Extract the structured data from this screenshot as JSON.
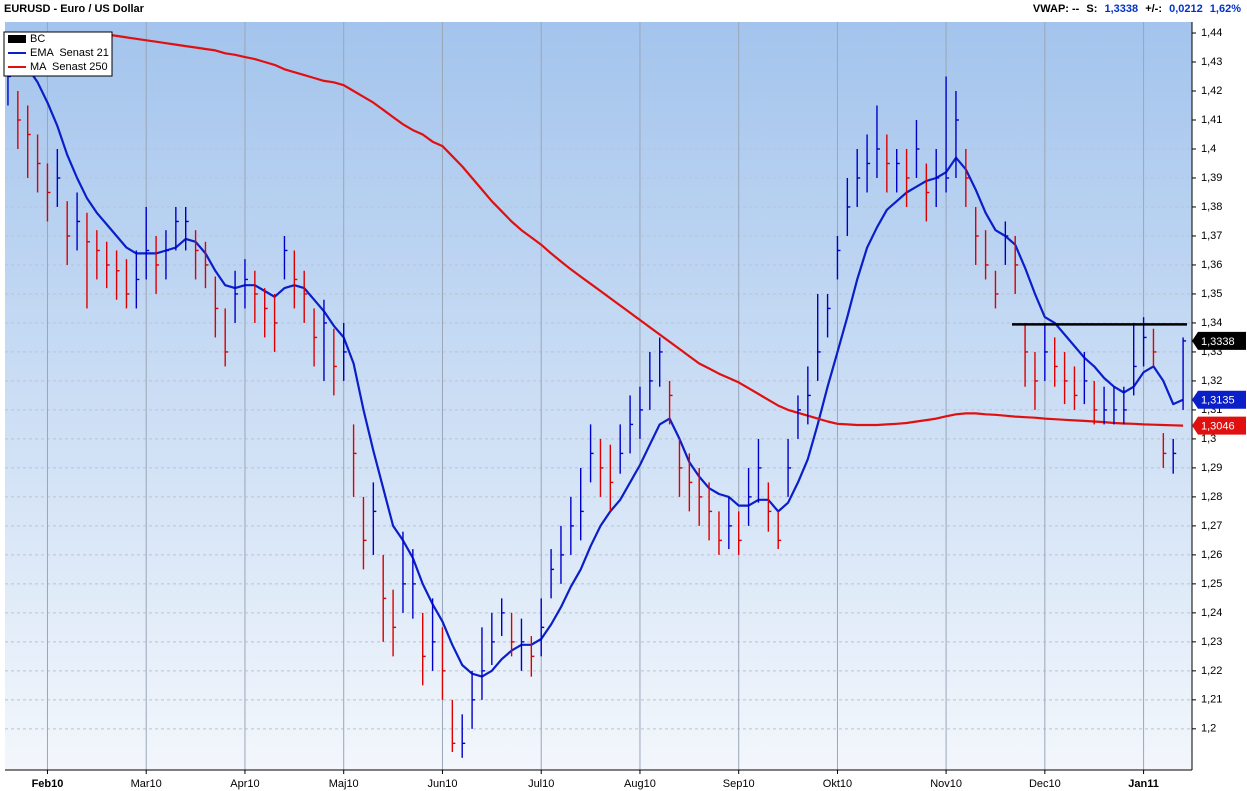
{
  "chart_data": {
    "type": "ohlc",
    "title": "EURUSD - Euro / US Dollar",
    "stats": [
      "VWAP: --",
      "S:",
      "1,3338",
      "+/-:",
      "0,0212",
      "1,62%"
    ],
    "categories": [
      null,
      null,
      null,
      null,
      "Feb10",
      null,
      null,
      null,
      null,
      null,
      null,
      null,
      null,
      null,
      "Mar10",
      null,
      null,
      null,
      null,
      null,
      null,
      null,
      null,
      null,
      "Apr10",
      null,
      null,
      null,
      null,
      null,
      null,
      null,
      null,
      null,
      "Maj10",
      null,
      null,
      null,
      null,
      null,
      null,
      null,
      null,
      null,
      "Jun10",
      null,
      null,
      null,
      null,
      null,
      null,
      null,
      null,
      null,
      "Jul10",
      null,
      null,
      null,
      null,
      null,
      null,
      null,
      null,
      null,
      "Aug10",
      null,
      null,
      null,
      null,
      null,
      null,
      null,
      null,
      null,
      "Sep10",
      null,
      null,
      null,
      null,
      null,
      null,
      null,
      null,
      null,
      "Okt10",
      null,
      null,
      null,
      null,
      null,
      null,
      null,
      null,
      null,
      null,
      "Nov10",
      null,
      null,
      null,
      null,
      null,
      null,
      null,
      null,
      null,
      "Dec10",
      null,
      null,
      null,
      null,
      null,
      null,
      null,
      null,
      null,
      "Jan11",
      null,
      null,
      null,
      null
    ],
    "ylim": [
      1.1858,
      1.4438
    ],
    "yticks": [
      {
        "value": 1.2,
        "label": "1,2"
      },
      {
        "value": 1.21,
        "label": "1,21"
      },
      {
        "value": 1.22,
        "label": "1,22"
      },
      {
        "value": 1.23,
        "label": "1,23"
      },
      {
        "value": 1.24,
        "label": "1,24"
      },
      {
        "value": 1.25,
        "label": "1,25"
      },
      {
        "value": 1.26,
        "label": "1,26"
      },
      {
        "value": 1.27,
        "label": "1,27"
      },
      {
        "value": 1.28,
        "label": "1,28"
      },
      {
        "value": 1.29,
        "label": "1,29"
      },
      {
        "value": 1.3,
        "label": "1,3"
      },
      {
        "value": 1.31,
        "label": "1,31"
      },
      {
        "value": 1.32,
        "label": "1,32"
      },
      {
        "value": 1.33,
        "label": "1,33"
      },
      {
        "value": 1.34,
        "label": "1,34"
      },
      {
        "value": 1.35,
        "label": "1,35"
      },
      {
        "value": 1.36,
        "label": "1,36"
      },
      {
        "value": 1.37,
        "label": "1,37"
      },
      {
        "value": 1.38,
        "label": "1,38"
      },
      {
        "value": 1.39,
        "label": "1,39"
      },
      {
        "value": 1.4,
        "label": "1,4"
      },
      {
        "value": 1.41,
        "label": "1,41"
      },
      {
        "value": 1.42,
        "label": "1,42"
      },
      {
        "value": 1.43,
        "label": "1,43"
      },
      {
        "value": 1.44,
        "label": "1,44"
      }
    ],
    "grid": true,
    "legend": "top-left",
    "hline": 1.3395,
    "up_color": "#0000cc",
    "down_color": "#dd0000",
    "series": [
      {
        "name": "BC",
        "type": "ohlc",
        "color": "#000000",
        "last_label": "1,3338",
        "high": [
          1.432,
          1.42,
          1.415,
          1.405,
          1.395,
          1.4,
          1.382,
          1.385,
          1.378,
          1.372,
          1.368,
          1.365,
          1.362,
          1.365,
          1.38,
          1.37,
          1.372,
          1.38,
          1.38,
          1.372,
          1.368,
          1.356,
          1.345,
          1.358,
          1.362,
          1.358,
          1.352,
          1.35,
          1.37,
          1.365,
          1.358,
          1.345,
          1.348,
          1.338,
          1.34,
          1.305,
          1.28,
          1.285,
          1.26,
          1.248,
          1.268,
          1.262,
          1.24,
          1.245,
          1.235,
          1.21,
          1.205,
          1.22,
          1.235,
          1.24,
          1.245,
          1.24,
          1.238,
          1.232,
          1.245,
          1.262,
          1.27,
          1.28,
          1.29,
          1.305,
          1.3,
          1.298,
          1.305,
          1.315,
          1.318,
          1.33,
          1.335,
          1.32,
          1.3,
          1.295,
          1.29,
          1.285,
          1.275,
          1.28,
          1.275,
          1.29,
          1.3,
          1.285,
          1.275,
          1.3,
          1.315,
          1.325,
          1.35,
          1.35,
          1.37,
          1.39,
          1.4,
          1.405,
          1.415,
          1.405,
          1.4,
          1.4,
          1.41,
          1.395,
          1.4,
          1.425,
          1.42,
          1.4,
          1.38,
          1.372,
          1.358,
          1.375,
          1.37,
          1.34,
          1.33,
          1.34,
          1.335,
          1.33,
          1.325,
          1.33,
          1.32,
          1.318,
          1.318,
          1.318,
          1.34,
          1.342,
          1.338,
          1.302,
          1.3,
          1.335
        ],
        "low": [
          1.415,
          1.4,
          1.39,
          1.385,
          1.375,
          1.38,
          1.36,
          1.365,
          1.345,
          1.355,
          1.352,
          1.348,
          1.345,
          1.345,
          1.355,
          1.35,
          1.355,
          1.365,
          1.365,
          1.355,
          1.352,
          1.335,
          1.325,
          1.34,
          1.345,
          1.34,
          1.335,
          1.33,
          1.355,
          1.345,
          1.34,
          1.325,
          1.32,
          1.315,
          1.32,
          1.28,
          1.255,
          1.26,
          1.23,
          1.225,
          1.24,
          1.238,
          1.215,
          1.22,
          1.21,
          1.192,
          1.19,
          1.2,
          1.21,
          1.222,
          1.232,
          1.225,
          1.22,
          1.218,
          1.225,
          1.245,
          1.25,
          1.26,
          1.265,
          1.285,
          1.28,
          1.275,
          1.288,
          1.295,
          1.3,
          1.31,
          1.318,
          1.305,
          1.28,
          1.275,
          1.27,
          1.265,
          1.26,
          1.262,
          1.26,
          1.27,
          1.278,
          1.268,
          1.262,
          1.28,
          1.3,
          1.305,
          1.32,
          1.335,
          1.355,
          1.37,
          1.38,
          1.385,
          1.39,
          1.385,
          1.385,
          1.38,
          1.39,
          1.375,
          1.38,
          1.385,
          1.39,
          1.38,
          1.36,
          1.355,
          1.345,
          1.36,
          1.35,
          1.318,
          1.31,
          1.32,
          1.318,
          1.312,
          1.31,
          1.312,
          1.305,
          1.305,
          1.305,
          1.305,
          1.315,
          1.325,
          1.325,
          1.29,
          1.288,
          1.31
        ],
        "values": [
          1.425,
          1.41,
          1.405,
          1.395,
          1.385,
          1.39,
          1.37,
          1.375,
          1.368,
          1.365,
          1.36,
          1.358,
          1.35,
          1.355,
          1.365,
          1.36,
          1.365,
          1.375,
          1.375,
          1.365,
          1.36,
          1.345,
          1.33,
          1.35,
          1.355,
          1.35,
          1.345,
          1.34,
          1.365,
          1.355,
          1.35,
          1.335,
          1.34,
          1.325,
          1.33,
          1.295,
          1.265,
          1.275,
          1.245,
          1.235,
          1.25,
          1.25,
          1.225,
          1.23,
          1.22,
          1.195,
          1.195,
          1.21,
          1.22,
          1.23,
          1.24,
          1.23,
          1.23,
          1.225,
          1.235,
          1.255,
          1.26,
          1.27,
          1.275,
          1.295,
          1.29,
          1.285,
          1.295,
          1.305,
          1.31,
          1.32,
          1.33,
          1.315,
          1.29,
          1.285,
          1.28,
          1.275,
          1.265,
          1.27,
          1.265,
          1.28,
          1.29,
          1.275,
          1.265,
          1.29,
          1.31,
          1.315,
          1.33,
          1.345,
          1.365,
          1.38,
          1.39,
          1.395,
          1.4,
          1.395,
          1.395,
          1.39,
          1.4,
          1.385,
          1.39,
          1.39,
          1.41,
          1.39,
          1.37,
          1.36,
          1.35,
          1.37,
          1.36,
          1.33,
          1.32,
          1.33,
          1.325,
          1.32,
          1.315,
          1.32,
          1.31,
          1.31,
          1.31,
          1.31,
          1.325,
          1.335,
          1.33,
          1.295,
          1.295,
          1.3338
        ]
      },
      {
        "name": "EMA  Senast 21",
        "type": "line",
        "color": "#0a1fc8",
        "last_label": "1,3135",
        "values": [
          null,
          null,
          1.428,
          1.423,
          1.416,
          1.408,
          1.398,
          1.39,
          1.383,
          1.378,
          1.374,
          1.37,
          1.366,
          1.364,
          1.364,
          1.364,
          1.365,
          1.366,
          1.369,
          1.368,
          1.364,
          1.358,
          1.353,
          1.352,
          1.353,
          1.353,
          1.351,
          1.349,
          1.352,
          1.353,
          1.352,
          1.348,
          1.344,
          1.339,
          1.335,
          1.326,
          1.31,
          1.296,
          1.283,
          1.27,
          1.265,
          1.259,
          1.25,
          1.243,
          1.237,
          1.229,
          1.222,
          1.219,
          1.218,
          1.22,
          1.224,
          1.227,
          1.229,
          1.229,
          1.231,
          1.236,
          1.242,
          1.249,
          1.255,
          1.263,
          1.27,
          1.275,
          1.279,
          1.285,
          1.291,
          1.298,
          1.305,
          1.307,
          1.3,
          1.292,
          1.287,
          1.283,
          1.281,
          1.28,
          1.277,
          1.277,
          1.279,
          1.279,
          1.275,
          1.278,
          1.285,
          1.293,
          1.305,
          1.318,
          1.33,
          1.342,
          1.355,
          1.366,
          1.373,
          1.379,
          1.382,
          1.385,
          1.387,
          1.389,
          1.39,
          1.392,
          1.397,
          1.393,
          1.386,
          1.378,
          1.372,
          1.37,
          1.367,
          1.359,
          1.35,
          1.342,
          1.34,
          1.336,
          1.332,
          1.328,
          1.325,
          1.321,
          1.318,
          1.316,
          1.318,
          1.323,
          1.325,
          1.32,
          1.312,
          1.3135
        ]
      },
      {
        "name": "MA  Senast 250",
        "type": "line",
        "color": "#e01010",
        "last_label": "1,3046",
        "values": [
          null,
          null,
          null,
          null,
          null,
          null,
          null,
          null,
          null,
          null,
          1.4395,
          1.439,
          1.4385,
          1.438,
          1.4375,
          1.437,
          1.4365,
          1.436,
          1.4355,
          1.435,
          1.4345,
          1.434,
          1.433,
          1.4325,
          1.4317,
          1.431,
          1.43,
          1.429,
          1.4275,
          1.4265,
          1.4255,
          1.4245,
          1.4235,
          1.423,
          1.422,
          1.42,
          1.418,
          1.416,
          1.4135,
          1.411,
          1.4085,
          1.4065,
          1.405,
          1.4025,
          1.401,
          1.3975,
          1.394,
          1.39,
          1.386,
          1.382,
          1.3785,
          1.375,
          1.372,
          1.3695,
          1.367,
          1.364,
          1.3612,
          1.3585,
          1.356,
          1.3535,
          1.351,
          1.3485,
          1.346,
          1.3435,
          1.341,
          1.3385,
          1.336,
          1.3335,
          1.331,
          1.3285,
          1.326,
          1.3243,
          1.3225,
          1.321,
          1.3195,
          1.3175,
          1.3155,
          1.3135,
          1.3115,
          1.31,
          1.309,
          1.308,
          1.307,
          1.306,
          1.3052,
          1.305,
          1.3048,
          1.3048,
          1.3048,
          1.305,
          1.3052,
          1.3055,
          1.306,
          1.3065,
          1.307,
          1.3078,
          1.3085,
          1.3088,
          1.3088,
          1.3085,
          1.3083,
          1.308,
          1.3077,
          1.3075,
          1.3073,
          1.307,
          1.3068,
          1.3066,
          1.3064,
          1.3062,
          1.306,
          1.3058,
          1.3055,
          1.3053,
          1.3052,
          1.305,
          1.3049,
          1.3048,
          1.3047,
          1.3046
        ]
      }
    ]
  }
}
